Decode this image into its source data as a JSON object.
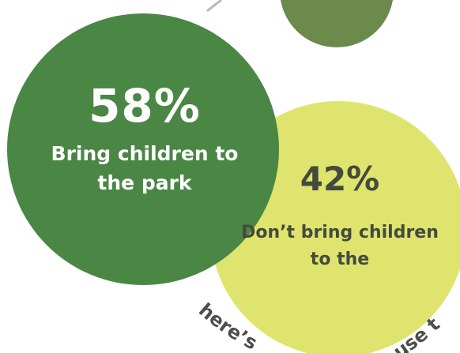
{
  "colors": {
    "big_bubble": "#4a8745",
    "small_bubble": "#dfe46e",
    "top_bubble": "#6b8a4c",
    "arc_line": "#b9b9b9",
    "big_text": "#ffffff",
    "small_text": "#444a3c",
    "arc_text": "#4e4e4e"
  },
  "chart_data": {
    "type": "bubble",
    "series": [
      {
        "label": "Bring children to the park",
        "value": 58,
        "value_label": "58%"
      },
      {
        "label": "Don’t bring children to the",
        "value": 42,
        "value_label": "42%"
      }
    ]
  },
  "arc_text": {
    "left": "here’s",
    "right": "use t"
  }
}
